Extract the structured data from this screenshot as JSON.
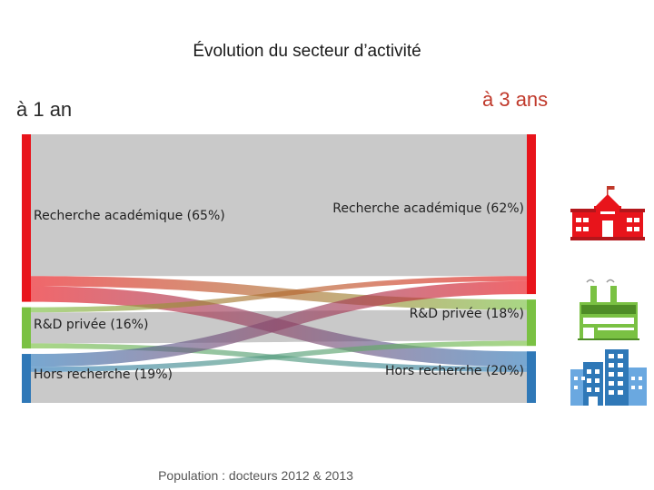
{
  "title": "Évolution du secteur d’activité",
  "left_heading": "à 1 an",
  "right_heading": "à 3 ans",
  "footer": "Population : docteurs 2012 & 2013",
  "colors": {
    "academic": "#e8141b",
    "private": "#7ac143",
    "outside": "#2f78b7",
    "band": "#c9c9c9"
  },
  "left_nodes": [
    {
      "id": "academic",
      "label": "Recherche académique (65%)",
      "pct": 65
    },
    {
      "id": "private",
      "label": "R&D privée (16%)",
      "pct": 16
    },
    {
      "id": "outside",
      "label": "Hors recherche (19%)",
      "pct": 19
    }
  ],
  "right_nodes": [
    {
      "id": "academic",
      "label": "Recherche académique (62%)",
      "pct": 62
    },
    {
      "id": "private",
      "label": "R&D privée (18%)",
      "pct": 18
    },
    {
      "id": "outside",
      "label": "Hors recherche (20%)",
      "pct": 20
    }
  ],
  "flows": [
    {
      "from": "academic",
      "to": "academic",
      "value": 55
    },
    {
      "from": "academic",
      "to": "private",
      "value": 4
    },
    {
      "from": "academic",
      "to": "outside",
      "value": 6
    },
    {
      "from": "private",
      "to": "academic",
      "value": 2
    },
    {
      "from": "private",
      "to": "private",
      "value": 12
    },
    {
      "from": "private",
      "to": "outside",
      "value": 2
    },
    {
      "from": "outside",
      "to": "academic",
      "value": 5
    },
    {
      "from": "outside",
      "to": "private",
      "value": 2
    },
    {
      "from": "outside",
      "to": "outside",
      "value": 12
    }
  ],
  "icons": [
    "university-icon",
    "factory-icon",
    "office-building-icon"
  ]
}
